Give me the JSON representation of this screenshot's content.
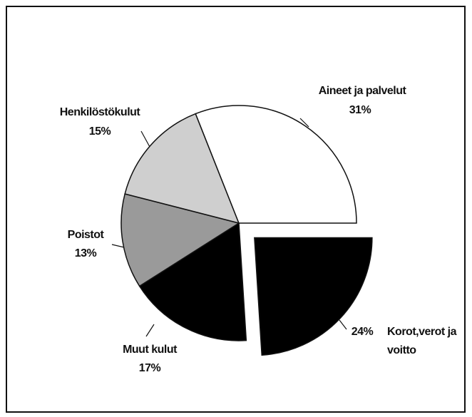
{
  "chart_data": {
    "type": "pie",
    "categories": [
      "Korot,verot ja voitto",
      "Muut kulut",
      "Poistot",
      "Henkilöstökulut",
      "Aineet ja palvelut"
    ],
    "values": [
      24,
      17,
      13,
      15,
      31
    ],
    "value_labels": [
      "24%",
      "17%",
      "13%",
      "15%",
      "31%"
    ],
    "colors": [
      "#000000",
      "#000000",
      "#9a9a9a",
      "#cfcfcf",
      "#ffffff"
    ],
    "exploded": [
      true,
      false,
      false,
      false,
      false
    ]
  }
}
